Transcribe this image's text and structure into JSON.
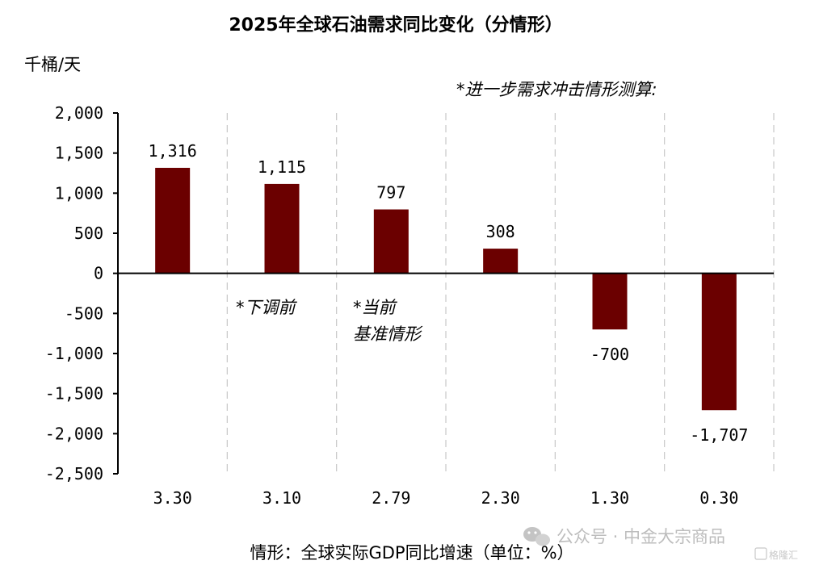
{
  "chart_data": {
    "type": "bar",
    "title": "2025年全球石油需求同比变化（分情形）",
    "ylabel": "千桶/天",
    "xlabel": "情形：全球实际GDP同比增速（单位：%）",
    "categories": [
      "3.30",
      "3.10",
      "2.79",
      "2.30",
      "1.30",
      "0.30"
    ],
    "values": [
      1316,
      1115,
      797,
      308,
      -700,
      -1707
    ],
    "data_labels": [
      "1,316",
      "1,115",
      "797",
      "308",
      "-700",
      "-1,707"
    ],
    "ylim": [
      -2500,
      2000
    ],
    "yticks": [
      2000,
      1500,
      1000,
      500,
      0,
      -500,
      -1000,
      -1500,
      -2000,
      -2500
    ],
    "ytick_labels": [
      "2,000",
      "1,500",
      "1,000",
      "500",
      "0",
      "-500",
      "-1,000",
      "-1,500",
      "-2,000",
      "-2,500"
    ],
    "annotations": {
      "scenario_header": "*进一步需求冲击情形测算:",
      "before_revision": "*下调前",
      "current_line1": "*当前",
      "current_line2": "基准情形"
    },
    "grid": "vertical dashed separators",
    "bar_color": "#6b0000"
  },
  "watermark": {
    "text": "公众号 · 中金大宗商品",
    "logo_text": "格隆汇",
    "icon": "wechat-icon"
  }
}
